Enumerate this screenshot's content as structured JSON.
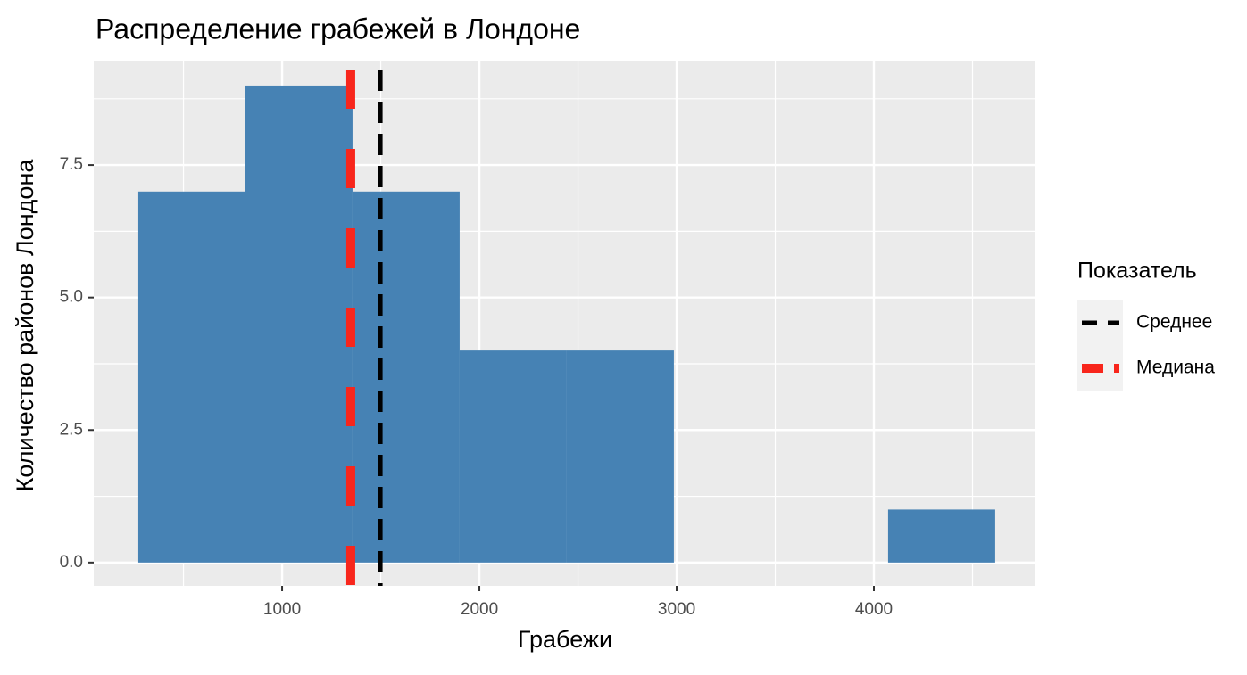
{
  "chart_data": {
    "type": "histogram",
    "title": "Распределение грабежей в Лондоне",
    "x_label": "Грабежи",
    "y_label": "Количество районов Лондона",
    "bins": [
      271,
      814,
      1357,
      1900,
      2443,
      2986,
      3529,
      4072,
      4615
    ],
    "values": [
      7,
      9,
      7,
      4,
      4,
      0,
      0,
      1
    ],
    "color": "#4682b4",
    "xlim": [
      45,
      4819
    ],
    "ylim": [
      -0.44,
      9.47
    ],
    "xticks": [
      1000,
      2000,
      3000,
      4000
    ],
    "yticks": [
      {
        "value": 0,
        "label": "0.0"
      },
      2.5,
      {
        "value": 5,
        "label": "5.0"
      },
      7.5
    ],
    "grid": true,
    "legend_title": "Показатель",
    "legend_position": "right",
    "vlines": [
      {
        "name": "Среднее",
        "value": 1498,
        "color": "#000000"
      },
      {
        "name": "Медиана",
        "value": 1348,
        "color": "#f8261c"
      }
    ]
  }
}
